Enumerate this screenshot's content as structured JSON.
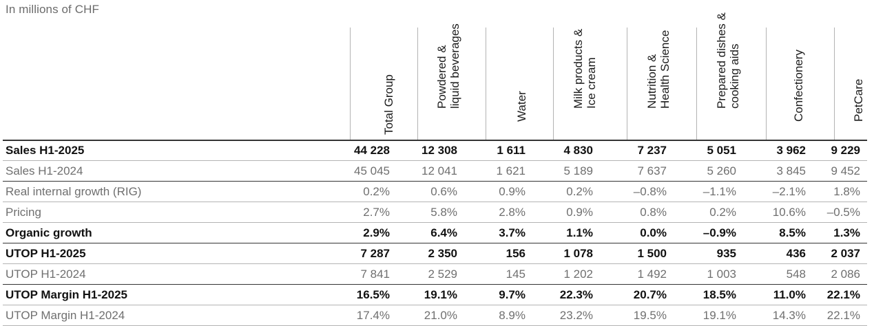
{
  "caption": "In millions of CHF",
  "columns": [
    {
      "key": "total",
      "lines": [
        "Total Group"
      ]
    },
    {
      "key": "powdered",
      "lines": [
        "Powdered &",
        "liquid beverages"
      ]
    },
    {
      "key": "water",
      "lines": [
        "Water"
      ]
    },
    {
      "key": "milk",
      "lines": [
        "Milk products &",
        "Ice cream"
      ]
    },
    {
      "key": "nutrition",
      "lines": [
        "Nutrition &",
        "Health Science"
      ]
    },
    {
      "key": "prepared",
      "lines": [
        "Prepared dishes &",
        "cooking aids"
      ]
    },
    {
      "key": "confectionery",
      "lines": [
        "Confectionery"
      ]
    },
    {
      "key": "petcare",
      "lines": [
        "PetCare"
      ]
    }
  ],
  "rows": [
    {
      "label": "Sales H1-2025",
      "style": "bold",
      "values": [
        "44 228",
        "12 308",
        "1 611",
        "4 830",
        "7 237",
        "5 051",
        "3 962",
        "9 229"
      ]
    },
    {
      "label": "Sales H1-2024",
      "style": "light-thick",
      "values": [
        "45 045",
        "12 041",
        "1 621",
        "5 189",
        "7 637",
        "5 260",
        "3 845",
        "9 452"
      ]
    },
    {
      "label": "Real internal growth (RIG)",
      "style": "light",
      "values": [
        "0.2%",
        "0.6%",
        "0.9%",
        "0.2%",
        "–0.8%",
        "–1.1%",
        "–2.1%",
        "1.8%"
      ]
    },
    {
      "label": "Pricing",
      "style": "light",
      "values": [
        "2.7%",
        "5.8%",
        "2.8%",
        "0.9%",
        "0.8%",
        "0.2%",
        "10.6%",
        "–0.5%"
      ]
    },
    {
      "label": "Organic growth",
      "style": "bold-thick",
      "values": [
        "2.9%",
        "6.4%",
        "3.7%",
        "1.1%",
        "0.0%",
        "–0.9%",
        "8.5%",
        "1.3%"
      ]
    },
    {
      "label": "UTOP H1-2025",
      "style": "bold",
      "values": [
        "7 287",
        "2 350",
        "156",
        "1 078",
        "1 500",
        "935",
        "436",
        "2 037"
      ]
    },
    {
      "label": "UTOP H1-2024",
      "style": "light-thick",
      "values": [
        "7 841",
        "2 529",
        "145",
        "1 202",
        "1 492",
        "1 003",
        "548",
        "2 086"
      ]
    },
    {
      "label": "UTOP Margin H1-2025",
      "style": "bold",
      "values": [
        "16.5%",
        "19.1%",
        "9.7%",
        "22.3%",
        "20.7%",
        "18.5%",
        "11.0%",
        "22.1%"
      ]
    },
    {
      "label": "UTOP Margin H1-2024",
      "style": "light",
      "values": [
        "17.4%",
        "21.0%",
        "8.9%",
        "23.2%",
        "19.5%",
        "19.1%",
        "14.3%",
        "22.1%"
      ]
    }
  ]
}
